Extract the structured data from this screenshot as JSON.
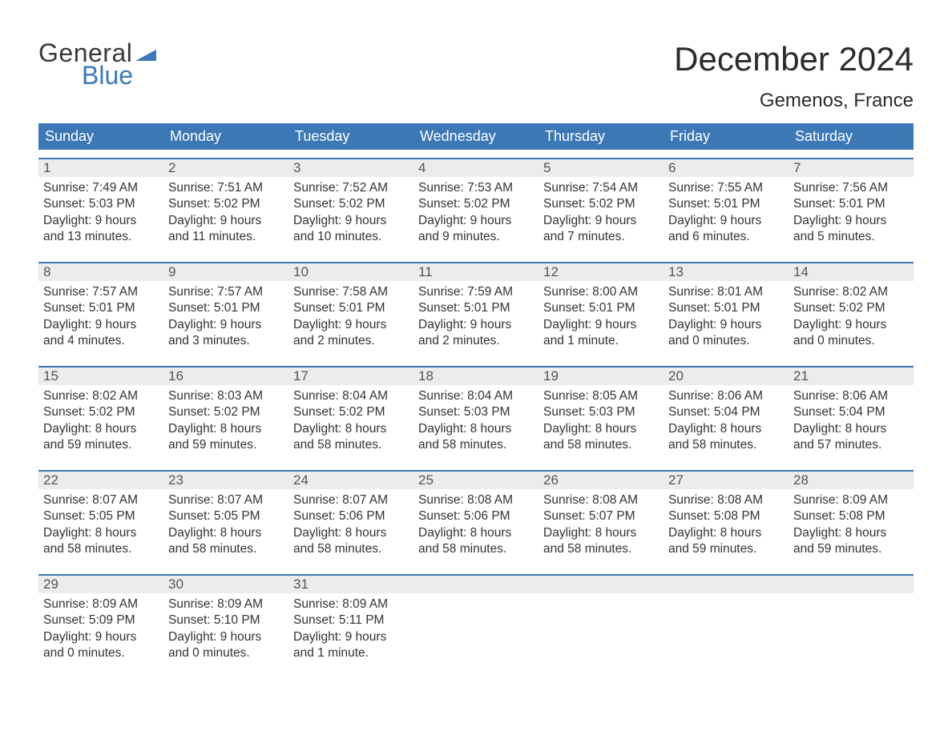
{
  "brand": {
    "top": "General",
    "bottom": "Blue",
    "accent_color": "#3b78b5"
  },
  "title": "December 2024",
  "location": "Gemenos, France",
  "weekdays": [
    "Sunday",
    "Monday",
    "Tuesday",
    "Wednesday",
    "Thursday",
    "Friday",
    "Saturday"
  ],
  "colors": {
    "accent": "#3b78b5",
    "row_bg": "#ececec",
    "text": "#333333",
    "background": "#ffffff"
  },
  "weeks": [
    {
      "nums": [
        "1",
        "2",
        "3",
        "4",
        "5",
        "6",
        "7"
      ],
      "cells": [
        {
          "sunrise": "Sunrise: 7:49 AM",
          "sunset": "Sunset: 5:03 PM",
          "day1": "Daylight: 9 hours",
          "day2": "and 13 minutes."
        },
        {
          "sunrise": "Sunrise: 7:51 AM",
          "sunset": "Sunset: 5:02 PM",
          "day1": "Daylight: 9 hours",
          "day2": "and 11 minutes."
        },
        {
          "sunrise": "Sunrise: 7:52 AM",
          "sunset": "Sunset: 5:02 PM",
          "day1": "Daylight: 9 hours",
          "day2": "and 10 minutes."
        },
        {
          "sunrise": "Sunrise: 7:53 AM",
          "sunset": "Sunset: 5:02 PM",
          "day1": "Daylight: 9 hours",
          "day2": "and 9 minutes."
        },
        {
          "sunrise": "Sunrise: 7:54 AM",
          "sunset": "Sunset: 5:02 PM",
          "day1": "Daylight: 9 hours",
          "day2": "and 7 minutes."
        },
        {
          "sunrise": "Sunrise: 7:55 AM",
          "sunset": "Sunset: 5:01 PM",
          "day1": "Daylight: 9 hours",
          "day2": "and 6 minutes."
        },
        {
          "sunrise": "Sunrise: 7:56 AM",
          "sunset": "Sunset: 5:01 PM",
          "day1": "Daylight: 9 hours",
          "day2": "and 5 minutes."
        }
      ]
    },
    {
      "nums": [
        "8",
        "9",
        "10",
        "11",
        "12",
        "13",
        "14"
      ],
      "cells": [
        {
          "sunrise": "Sunrise: 7:57 AM",
          "sunset": "Sunset: 5:01 PM",
          "day1": "Daylight: 9 hours",
          "day2": "and 4 minutes."
        },
        {
          "sunrise": "Sunrise: 7:57 AM",
          "sunset": "Sunset: 5:01 PM",
          "day1": "Daylight: 9 hours",
          "day2": "and 3 minutes."
        },
        {
          "sunrise": "Sunrise: 7:58 AM",
          "sunset": "Sunset: 5:01 PM",
          "day1": "Daylight: 9 hours",
          "day2": "and 2 minutes."
        },
        {
          "sunrise": "Sunrise: 7:59 AM",
          "sunset": "Sunset: 5:01 PM",
          "day1": "Daylight: 9 hours",
          "day2": "and 2 minutes."
        },
        {
          "sunrise": "Sunrise: 8:00 AM",
          "sunset": "Sunset: 5:01 PM",
          "day1": "Daylight: 9 hours",
          "day2": "and 1 minute."
        },
        {
          "sunrise": "Sunrise: 8:01 AM",
          "sunset": "Sunset: 5:01 PM",
          "day1": "Daylight: 9 hours",
          "day2": "and 0 minutes."
        },
        {
          "sunrise": "Sunrise: 8:02 AM",
          "sunset": "Sunset: 5:02 PM",
          "day1": "Daylight: 9 hours",
          "day2": "and 0 minutes."
        }
      ]
    },
    {
      "nums": [
        "15",
        "16",
        "17",
        "18",
        "19",
        "20",
        "21"
      ],
      "cells": [
        {
          "sunrise": "Sunrise: 8:02 AM",
          "sunset": "Sunset: 5:02 PM",
          "day1": "Daylight: 8 hours",
          "day2": "and 59 minutes."
        },
        {
          "sunrise": "Sunrise: 8:03 AM",
          "sunset": "Sunset: 5:02 PM",
          "day1": "Daylight: 8 hours",
          "day2": "and 59 minutes."
        },
        {
          "sunrise": "Sunrise: 8:04 AM",
          "sunset": "Sunset: 5:02 PM",
          "day1": "Daylight: 8 hours",
          "day2": "and 58 minutes."
        },
        {
          "sunrise": "Sunrise: 8:04 AM",
          "sunset": "Sunset: 5:03 PM",
          "day1": "Daylight: 8 hours",
          "day2": "and 58 minutes."
        },
        {
          "sunrise": "Sunrise: 8:05 AM",
          "sunset": "Sunset: 5:03 PM",
          "day1": "Daylight: 8 hours",
          "day2": "and 58 minutes."
        },
        {
          "sunrise": "Sunrise: 8:06 AM",
          "sunset": "Sunset: 5:04 PM",
          "day1": "Daylight: 8 hours",
          "day2": "and 58 minutes."
        },
        {
          "sunrise": "Sunrise: 8:06 AM",
          "sunset": "Sunset: 5:04 PM",
          "day1": "Daylight: 8 hours",
          "day2": "and 57 minutes."
        }
      ]
    },
    {
      "nums": [
        "22",
        "23",
        "24",
        "25",
        "26",
        "27",
        "28"
      ],
      "cells": [
        {
          "sunrise": "Sunrise: 8:07 AM",
          "sunset": "Sunset: 5:05 PM",
          "day1": "Daylight: 8 hours",
          "day2": "and 58 minutes."
        },
        {
          "sunrise": "Sunrise: 8:07 AM",
          "sunset": "Sunset: 5:05 PM",
          "day1": "Daylight: 8 hours",
          "day2": "and 58 minutes."
        },
        {
          "sunrise": "Sunrise: 8:07 AM",
          "sunset": "Sunset: 5:06 PM",
          "day1": "Daylight: 8 hours",
          "day2": "and 58 minutes."
        },
        {
          "sunrise": "Sunrise: 8:08 AM",
          "sunset": "Sunset: 5:06 PM",
          "day1": "Daylight: 8 hours",
          "day2": "and 58 minutes."
        },
        {
          "sunrise": "Sunrise: 8:08 AM",
          "sunset": "Sunset: 5:07 PM",
          "day1": "Daylight: 8 hours",
          "day2": "and 58 minutes."
        },
        {
          "sunrise": "Sunrise: 8:08 AM",
          "sunset": "Sunset: 5:08 PM",
          "day1": "Daylight: 8 hours",
          "day2": "and 59 minutes."
        },
        {
          "sunrise": "Sunrise: 8:09 AM",
          "sunset": "Sunset: 5:08 PM",
          "day1": "Daylight: 8 hours",
          "day2": "and 59 minutes."
        }
      ]
    },
    {
      "nums": [
        "29",
        "30",
        "31",
        "",
        "",
        "",
        ""
      ],
      "cells": [
        {
          "sunrise": "Sunrise: 8:09 AM",
          "sunset": "Sunset: 5:09 PM",
          "day1": "Daylight: 9 hours",
          "day2": "and 0 minutes."
        },
        {
          "sunrise": "Sunrise: 8:09 AM",
          "sunset": "Sunset: 5:10 PM",
          "day1": "Daylight: 9 hours",
          "day2": "and 0 minutes."
        },
        {
          "sunrise": "Sunrise: 8:09 AM",
          "sunset": "Sunset: 5:11 PM",
          "day1": "Daylight: 9 hours",
          "day2": "and 1 minute."
        },
        null,
        null,
        null,
        null
      ]
    }
  ]
}
